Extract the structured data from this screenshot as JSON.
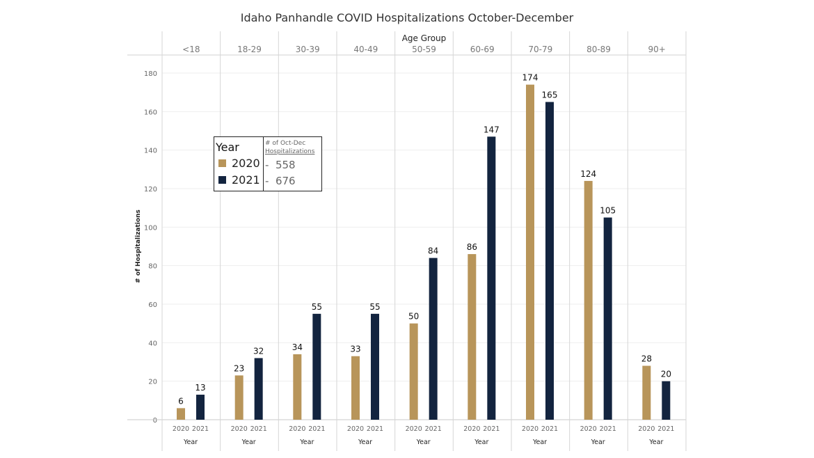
{
  "chart_data": {
    "type": "bar",
    "title": "Idaho Panhandle COVID Hospitalizations October-December",
    "column_header": "Age Group",
    "categories": [
      "<18",
      "18-29",
      "30-39",
      "40-49",
      "50-59",
      "60-69",
      "70-79",
      "80-89",
      "90+"
    ],
    "sub_categories": [
      "2020",
      "2021"
    ],
    "sub_axis_label": "Year",
    "series": [
      {
        "name": "2020",
        "color": "#b8955a",
        "values": [
          6,
          23,
          34,
          33,
          50,
          86,
          174,
          124,
          28
        ]
      },
      {
        "name": "2021",
        "color": "#13243f",
        "values": [
          13,
          32,
          55,
          55,
          84,
          147,
          165,
          105,
          20
        ]
      }
    ],
    "ylabel": "# of Hospitalizations",
    "ylim": [
      0,
      180
    ],
    "yticks": [
      0,
      20,
      40,
      60,
      80,
      100,
      120,
      140,
      160,
      180
    ],
    "grid": true,
    "legend": {
      "title": "Year",
      "position": "left-middle",
      "column_header_1": "# of Oct-Dec",
      "column_header_2": "Hospitalizations",
      "entries": [
        {
          "label": "2020",
          "total": "558"
        },
        {
          "label": "2021",
          "total": "676"
        }
      ]
    }
  }
}
